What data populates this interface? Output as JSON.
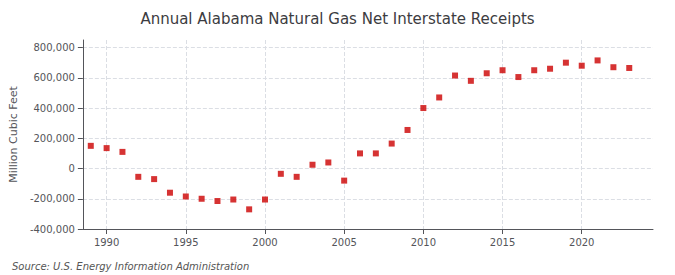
{
  "chart_data": {
    "type": "scatter",
    "title": "Annual Alabama Natural Gas Net Interstate Receipts",
    "ylabel": "Million Cubic Feet",
    "annotations": [
      "Source: U.S. Energy Information Administration"
    ],
    "color": "#cc0000",
    "marker": "square",
    "grid": true,
    "xlim": [
      1988.5,
      2024.5
    ],
    "xticks": [
      1990,
      1995,
      2000,
      2005,
      2010,
      2015,
      2020
    ],
    "ylim": [
      -400000,
      850000
    ],
    "yticks": [
      {
        "value": -400000,
        "label": "-400,000"
      },
      {
        "value": -200000,
        "label": "-200,000"
      },
      0,
      {
        "value": 200000,
        "label": "200,000"
      },
      {
        "value": 400000,
        "label": "400,000"
      },
      {
        "value": 600000,
        "label": "600,000"
      },
      {
        "value": 800000,
        "label": "800,000"
      }
    ],
    "x": [
      1989,
      1990,
      1991,
      1992,
      1993,
      1994,
      1995,
      1996,
      1997,
      1998,
      1999,
      2000,
      2001,
      2002,
      2003,
      2004,
      2005,
      2006,
      2007,
      2008,
      2009,
      2010,
      2011,
      2012,
      2013,
      2014,
      2015,
      2016,
      2017,
      2018,
      2019,
      2020,
      2021,
      2022,
      2023
    ],
    "values": [
      150000,
      135000,
      110000,
      -55000,
      -70000,
      -160000,
      -185000,
      -200000,
      -215000,
      -205000,
      -270000,
      -205000,
      -35000,
      -55000,
      25000,
      40000,
      -80000,
      100000,
      100000,
      165000,
      255000,
      400000,
      470000,
      615000,
      580000,
      630000,
      650000,
      605000,
      650000,
      660000,
      700000,
      680000,
      715000,
      670000,
      665000
    ]
  }
}
